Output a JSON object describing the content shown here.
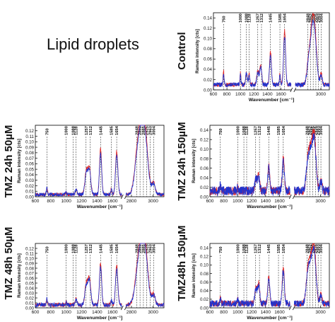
{
  "figure": {
    "title": "Lipid droplets",
    "xlabel": "Wavenumber [cm⁻¹]",
    "ylabel": "Raman intensity [cts]",
    "colors": {
      "series_a": "#dd2222",
      "series_b": "#2233cc"
    }
  },
  "chart_data": [
    {
      "type": "line",
      "panel": "Control",
      "title": "Control",
      "xlabel": "Wavenumber [cm⁻¹]",
      "ylabel": "Raman intensity [cts]",
      "x_ticks_left": [
        600,
        800,
        1000,
        1200,
        1400,
        1600
      ],
      "x_ticks_right": [
        3000
      ],
      "y_ticks": [
        0.0,
        0.02,
        0.04,
        0.06,
        0.08,
        0.1,
        0.12,
        0.14
      ],
      "ylim": [
        0,
        0.15
      ],
      "xlim_left": [
        600,
        1750
      ],
      "xlim_right": [
        2700,
        3100
      ],
      "marker_peaks": [
        "750",
        "1000",
        "1088",
        "1128",
        "1257",
        "1312",
        "1445",
        "1585",
        "1654",
        "2848",
        "2852",
        "2885",
        "2925",
        "2963",
        "3004"
      ],
      "baseline": 0.01,
      "peaks": [
        [
          750,
          0.025,
          8
        ],
        [
          1000,
          0.022,
          7
        ],
        [
          1088,
          0.022,
          12
        ],
        [
          1128,
          0.02,
          10
        ],
        [
          1257,
          0.025,
          15
        ],
        [
          1300,
          0.035,
          15
        ],
        [
          1445,
          0.06,
          14
        ],
        [
          1585,
          0.02,
          8
        ],
        [
          1654,
          0.1,
          15
        ],
        [
          2852,
          0.035,
          18
        ],
        [
          2890,
          0.07,
          22
        ],
        [
          2925,
          0.1,
          25
        ],
        [
          3004,
          0.02,
          12
        ]
      ],
      "noise": 0.004,
      "seed": 11
    },
    {
      "type": "line",
      "panel": "TMZ 24h 50µM",
      "title": "TMZ 24h 50µM",
      "xlabel": "Wavenumber [cm⁻¹]",
      "ylabel": "Raman intensity [cts]",
      "x_ticks_left": [
        600,
        800,
        1000,
        1200,
        1400,
        1600
      ],
      "x_ticks_right": [
        2800,
        3000
      ],
      "y_ticks": [
        0.0,
        0.01,
        0.02,
        0.03,
        0.04,
        0.05,
        0.06,
        0.07,
        0.08,
        0.09,
        0.1,
        0.11,
        0.12
      ],
      "ylim": [
        0,
        0.13
      ],
      "xlim_left": [
        600,
        1720
      ],
      "xlim_right": [
        2750,
        3100
      ],
      "marker_peaks": [
        "750",
        "1000",
        "1088",
        "1128",
        "1257",
        "1312",
        "1445",
        "1585",
        "1654",
        "2848",
        "2852",
        "2885",
        "2925",
        "2963",
        "3004"
      ],
      "baseline": 0.004,
      "peaks": [
        [
          750,
          0.012,
          8
        ],
        [
          1000,
          0.005,
          7
        ],
        [
          1128,
          0.01,
          12
        ],
        [
          1260,
          0.04,
          18
        ],
        [
          1300,
          0.045,
          18
        ],
        [
          1445,
          0.08,
          14
        ],
        [
          1585,
          0.01,
          8
        ],
        [
          1654,
          0.075,
          15
        ],
        [
          2852,
          0.06,
          25
        ],
        [
          2890,
          0.08,
          25
        ],
        [
          2925,
          0.095,
          28
        ],
        [
          3004,
          0.02,
          15
        ]
      ],
      "noise": 0.003,
      "seed": 23
    },
    {
      "type": "line",
      "panel": "TMZ 24h 150µM",
      "title": "TMZ 24h 150µM",
      "xlabel": "Wavenumber [cm⁻¹]",
      "ylabel": "Raman intensity [cts]",
      "x_ticks_left": [
        600,
        800,
        1000,
        1200,
        1400,
        1600
      ],
      "x_ticks_right": [
        3000
      ],
      "y_ticks": [
        0.0,
        0.02,
        0.04,
        0.06,
        0.08,
        0.1,
        0.12,
        0.14
      ],
      "ylim": [
        0,
        0.15
      ],
      "xlim_left": [
        600,
        1750
      ],
      "xlim_right": [
        2700,
        3100
      ],
      "marker_peaks": [
        "750",
        "1000",
        "1088",
        "1128",
        "1257",
        "1312",
        "1445",
        "1585",
        "1654",
        "2848",
        "2852",
        "2885",
        "2925",
        "2963",
        "3004"
      ],
      "baseline": 0.012,
      "peaks": [
        [
          750,
          0.012,
          8
        ],
        [
          1000,
          0.008,
          7
        ],
        [
          1260,
          0.025,
          15
        ],
        [
          1300,
          0.03,
          15
        ],
        [
          1445,
          0.05,
          14
        ],
        [
          1654,
          0.065,
          15
        ],
        [
          2852,
          0.05,
          18
        ],
        [
          2890,
          0.08,
          22
        ],
        [
          2930,
          0.1,
          20
        ],
        [
          3004,
          0.02,
          12
        ]
      ],
      "noise": 0.009,
      "seed": 37
    },
    {
      "type": "line",
      "panel": "TMZ 48h 50µM",
      "title": "TMZ 48h 50µM",
      "xlabel": "Wavenumber [cm⁻¹]",
      "ylabel": "Raman intensity [cts]",
      "x_ticks_left": [
        600,
        800,
        1000,
        1200,
        1400,
        1600
      ],
      "x_ticks_right": [
        2800,
        3000
      ],
      "y_ticks": [
        0.0,
        0.01,
        0.02,
        0.03,
        0.04,
        0.05,
        0.06,
        0.07,
        0.08,
        0.09,
        0.1,
        0.11,
        0.12
      ],
      "ylim": [
        0,
        0.13
      ],
      "xlim_left": [
        600,
        1720
      ],
      "xlim_right": [
        2750,
        3100
      ],
      "marker_peaks": [
        "750",
        "1000",
        "1088",
        "1128",
        "1257",
        "1312",
        "1445",
        "1585",
        "1654",
        "2848",
        "2852",
        "2885",
        "2925",
        "2963",
        "3004"
      ],
      "baseline": 0.006,
      "peaks": [
        [
          750,
          0.012,
          8
        ],
        [
          1000,
          0.006,
          7
        ],
        [
          1128,
          0.012,
          12
        ],
        [
          1260,
          0.04,
          18
        ],
        [
          1300,
          0.05,
          18
        ],
        [
          1445,
          0.08,
          14
        ],
        [
          1585,
          0.01,
          8
        ],
        [
          1654,
          0.075,
          15
        ],
        [
          2852,
          0.05,
          25
        ],
        [
          2890,
          0.085,
          25
        ],
        [
          2925,
          0.1,
          28
        ],
        [
          3004,
          0.02,
          15
        ]
      ],
      "noise": 0.004,
      "seed": 51
    },
    {
      "type": "line",
      "panel": "TMZ48h 150µM",
      "title": "TMZ48h 150µM",
      "xlabel": "Wavenumber [cm⁻¹]",
      "ylabel": "Raman intensity [cts]",
      "x_ticks_left": [
        600,
        800,
        1000,
        1200,
        1400,
        1600
      ],
      "x_ticks_right": [
        3000
      ],
      "y_ticks": [
        0.0,
        0.02,
        0.04,
        0.06,
        0.08,
        0.1,
        0.12,
        0.14
      ],
      "ylim": [
        0,
        0.15
      ],
      "xlim_left": [
        600,
        1750
      ],
      "xlim_right": [
        2700,
        3100
      ],
      "marker_peaks": [
        "750",
        "1000",
        "1088",
        "1128",
        "1257",
        "1312",
        "1445",
        "1585",
        "1654",
        "2848",
        "2852",
        "2885",
        "2925",
        "2963",
        "3004"
      ],
      "baseline": 0.01,
      "peaks": [
        [
          750,
          0.015,
          8
        ],
        [
          1000,
          0.01,
          7
        ],
        [
          1260,
          0.035,
          15
        ],
        [
          1300,
          0.045,
          15
        ],
        [
          1445,
          0.06,
          14
        ],
        [
          1654,
          0.08,
          15
        ],
        [
          2852,
          0.06,
          18
        ],
        [
          2890,
          0.09,
          22
        ],
        [
          2930,
          0.11,
          20
        ],
        [
          3004,
          0.02,
          12
        ]
      ],
      "noise": 0.007,
      "seed": 67
    }
  ]
}
